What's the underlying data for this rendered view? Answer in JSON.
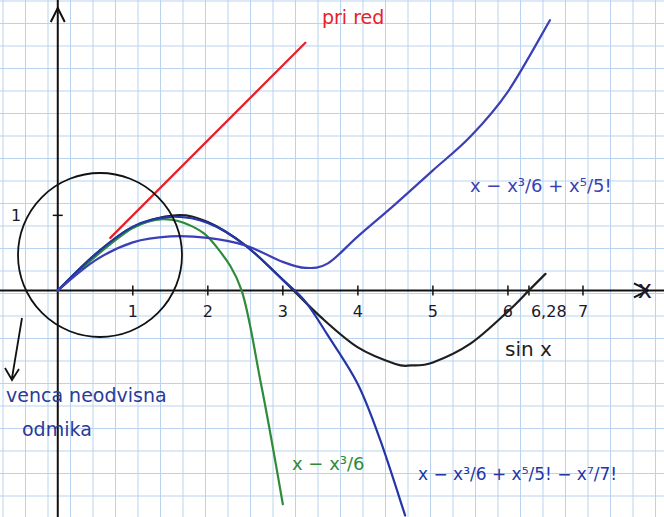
{
  "chart_data": {
    "type": "line",
    "x_label": "x",
    "xlim": [
      -0.77,
      8.08
    ],
    "ylim": [
      -3.02,
      3.87
    ],
    "xticks": [
      1,
      2,
      3,
      4,
      5,
      6,
      {
        "value": 6.28,
        "label": "6,28"
      },
      7
    ],
    "yticks": [
      1
    ],
    "annotations": [
      "venca neodvisna",
      "odmika"
    ],
    "series": [
      {
        "name": "sin x",
        "color": "#1e1e1e",
        "x": [
          0,
          0.5,
          1,
          1.57,
          2,
          2.5,
          3,
          3.5,
          4,
          4.5,
          4.71,
          5,
          5.5,
          6,
          6.28,
          6.5
        ],
        "values": [
          0,
          0.48,
          0.84,
          1,
          0.91,
          0.6,
          0.14,
          -0.35,
          -0.76,
          -0.98,
          -1,
          -0.96,
          -0.71,
          -0.28,
          0,
          0.22
        ]
      },
      {
        "name": "x − x³/6",
        "color": "#2e8b3a",
        "x": [
          0,
          0.5,
          1,
          1.4,
          1.8,
          2.1,
          2.45,
          2.7,
          2.85,
          3.0
        ],
        "values": [
          0,
          0.45,
          0.83,
          0.95,
          0.85,
          0.6,
          0,
          -1.2,
          -2.0,
          -2.85
        ]
      },
      {
        "name": "x − x³/6 + x⁵/5! − x⁷/7!",
        "color": "#2236a8",
        "x": [
          0,
          0.5,
          1,
          1.5,
          2,
          2.5,
          3,
          3.3,
          3.6,
          4,
          4.3,
          4.63
        ],
        "values": [
          0,
          0.48,
          0.85,
          0.98,
          0.9,
          0.6,
          0.14,
          -0.15,
          -0.6,
          -1.25,
          -2.0,
          -3.0
        ]
      },
      {
        "name": "x − x³/6 + x⁵/5!",
        "color": "#3b3fb5",
        "x": [
          0,
          0.5,
          1,
          1.5,
          2,
          2.5,
          3,
          3.3,
          3.6,
          4,
          4.5,
          5,
          5.5,
          6,
          6.56
        ],
        "values": [
          0,
          0.4,
          0.64,
          0.72,
          0.7,
          0.6,
          0.38,
          0.3,
          0.36,
          0.72,
          1.15,
          1.6,
          2.05,
          2.65,
          3.6
        ]
      },
      {
        "name": "pri red",
        "color": "#e8202a",
        "x": [
          0.7,
          3.3
        ],
        "values": [
          0.7,
          3.3
        ]
      }
    ]
  }
}
